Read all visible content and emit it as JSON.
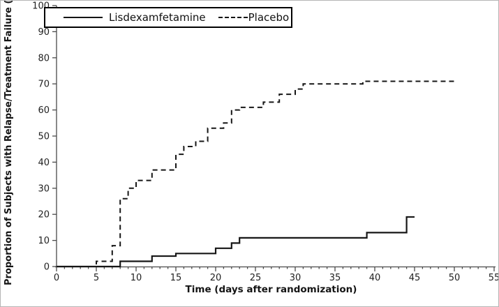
{
  "colors": {
    "curve": "#161616",
    "axis": "#4a4a4a",
    "text": "#1f1f1f",
    "figure_border": "#b5b5b5",
    "legend_border": "#000000",
    "background": "#ffffff"
  },
  "chart_data": {
    "type": "line",
    "subtype": "kaplan-meier-step",
    "title": "",
    "xlabel": "Time (days after randomization)",
    "ylabel": "Proportion of Subjects with Relapse/Treatment Failure (%)",
    "xlim": [
      0,
      55
    ],
    "ylim": [
      0,
      100
    ],
    "xtick_interval": 5,
    "xminor_interval": 1,
    "ytick_interval": 10,
    "grid": "off",
    "legend": {
      "position": "top-left-inside",
      "entries": [
        {
          "name": "Lisdexamfetamine",
          "line": "solid"
        },
        {
          "name": "Placebo",
          "line": "dashed"
        }
      ]
    },
    "series": [
      {
        "name": "Lisdexamfetamine",
        "style": "solid",
        "color": "#161616",
        "end_day": 45,
        "points": [
          [
            0,
            0
          ],
          [
            8,
            2
          ],
          [
            12,
            4
          ],
          [
            15,
            5
          ],
          [
            20,
            7
          ],
          [
            22,
            9
          ],
          [
            23,
            11
          ],
          [
            39,
            13
          ],
          [
            44,
            19
          ]
        ]
      },
      {
        "name": "Placebo",
        "style": "dashed",
        "color": "#161616",
        "end_day": 50,
        "points": [
          [
            0,
            0
          ],
          [
            5,
            2
          ],
          [
            7,
            8
          ],
          [
            8,
            26
          ],
          [
            9,
            30
          ],
          [
            10,
            33
          ],
          [
            12,
            37
          ],
          [
            15,
            43
          ],
          [
            16,
            46
          ],
          [
            17.5,
            48
          ],
          [
            19,
            53
          ],
          [
            21,
            55
          ],
          [
            22,
            60
          ],
          [
            23,
            61
          ],
          [
            26,
            63
          ],
          [
            28,
            66
          ],
          [
            30,
            68
          ],
          [
            31,
            70
          ],
          [
            38.5,
            71
          ]
        ]
      }
    ]
  }
}
